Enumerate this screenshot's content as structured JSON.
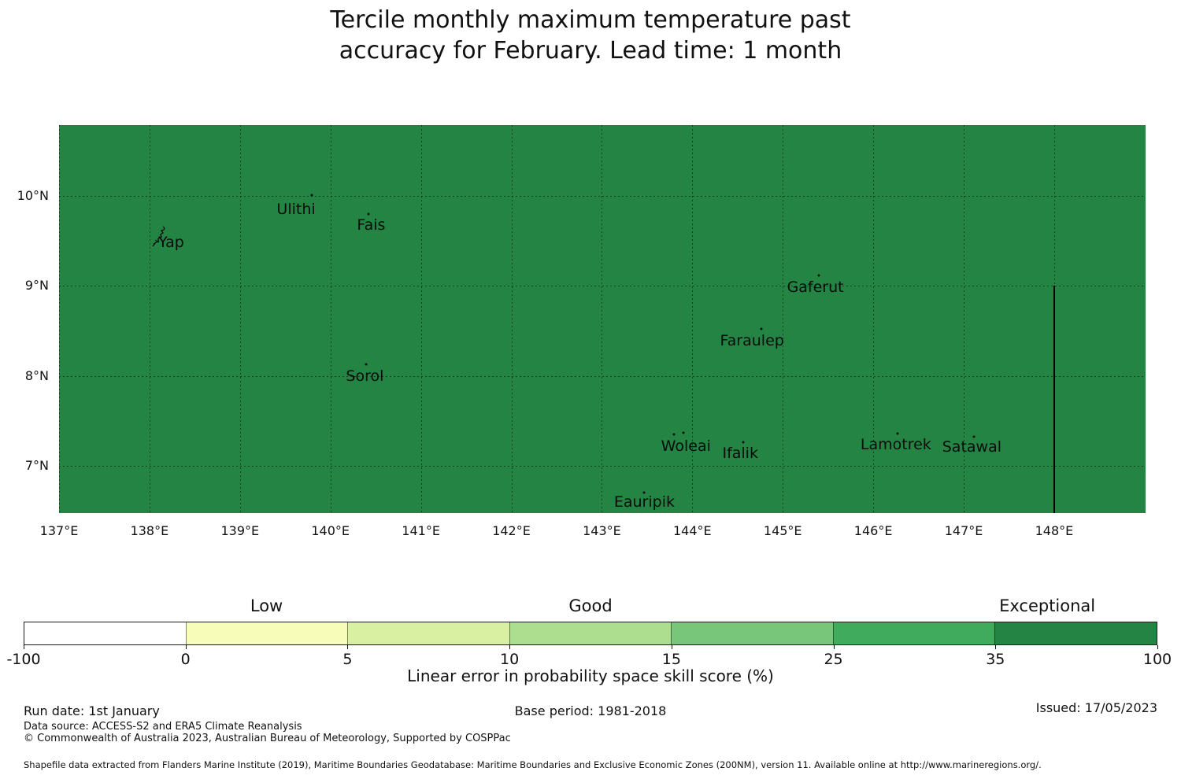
{
  "title": {
    "line1": "Tercile monthly maximum temperature past",
    "line2": "accuracy for February. Lead time: 1 month"
  },
  "chart_data": {
    "type": "heatmap",
    "subtype": "filled-choropleth-map",
    "map_fill_color": "#238443",
    "map_fill_band": "35 to 100 (Exceptional)",
    "x_axis": {
      "tick_labels": [
        "137°E",
        "138°E",
        "139°E",
        "140°E",
        "141°E",
        "142°E",
        "143°E",
        "144°E",
        "145°E",
        "146°E",
        "147°E",
        "148°E"
      ],
      "tick_values": [
        137,
        138,
        139,
        140,
        141,
        142,
        143,
        144,
        145,
        146,
        147,
        148
      ],
      "range": [
        137,
        149.01
      ],
      "grid": true
    },
    "y_axis": {
      "tick_labels": [
        "10°N",
        "9°N",
        "8°N",
        "7°N"
      ],
      "tick_values": [
        10,
        9,
        8,
        7
      ],
      "range": [
        6.48,
        10.785
      ],
      "grid": true
    },
    "islands": [
      {
        "name": "Yap",
        "lon": 138.24,
        "lat": 9.48,
        "shape": "yap-outline",
        "shape_lon": 138.12,
        "shape_lat": 9.55,
        "markers": []
      },
      {
        "name": "Ulithi",
        "lon": 139.62,
        "lat": 9.85,
        "markers": [
          [
            139.79,
            10.01
          ]
        ]
      },
      {
        "name": "Fais",
        "lon": 140.45,
        "lat": 9.68,
        "markers": [
          [
            140.42,
            9.8
          ]
        ]
      },
      {
        "name": "Sorol",
        "lon": 140.38,
        "lat": 8.0,
        "markers": [
          [
            140.39,
            8.13
          ]
        ]
      },
      {
        "name": "Gaferut",
        "lon": 145.36,
        "lat": 8.99,
        "markers": [
          [
            145.4,
            9.12
          ]
        ]
      },
      {
        "name": "Faraulep",
        "lon": 144.66,
        "lat": 8.39,
        "markers": [
          [
            144.76,
            8.52
          ]
        ]
      },
      {
        "name": "Woleai",
        "lon": 143.93,
        "lat": 7.22,
        "markers": [
          [
            143.8,
            7.35
          ],
          [
            143.9,
            7.37
          ]
        ]
      },
      {
        "name": "Ifalik",
        "lon": 144.53,
        "lat": 7.14,
        "markers": [
          [
            144.56,
            7.27
          ]
        ]
      },
      {
        "name": "Lamotrek",
        "lon": 146.25,
        "lat": 7.24,
        "markers": [
          [
            146.27,
            7.36
          ]
        ]
      },
      {
        "name": "Satawal",
        "lon": 147.09,
        "lat": 7.21,
        "markers": [
          [
            147.11,
            7.33
          ]
        ]
      },
      {
        "name": "Eauripik",
        "lon": 143.47,
        "lat": 6.6,
        "markers": [
          [
            143.47,
            6.71
          ]
        ]
      }
    ],
    "boundary_line": {
      "lon": 148,
      "lat_from": 9.0,
      "lat_to": 6.48
    },
    "colorbar": {
      "boundaries": [
        -100,
        0,
        5,
        10,
        15,
        25,
        35,
        100
      ],
      "tick_labels": [
        "-100",
        "0",
        "5",
        "10",
        "15",
        "25",
        "35",
        "100"
      ],
      "segment_colors": [
        "#ffffff",
        "#f7fcb9",
        "#d9f0a3",
        "#addd8e",
        "#78c679",
        "#41ab5d",
        "#238443"
      ],
      "categories": [
        {
          "label": "Low",
          "segment_pos": 1.5
        },
        {
          "label": "Good",
          "segment_pos": 3.5
        },
        {
          "label": "Exceptional",
          "segment_pos": 6.32
        }
      ],
      "axis_label": "Linear error in probability space skill score (%)"
    }
  },
  "footer": {
    "run_date": "Run date: 1st January",
    "base_period": "Base period: 1981-2018",
    "issued": "Issued: 17/05/2023",
    "data_source": "Data source: ACCESS-S2 and ERA5 Climate Reanalysis",
    "copyright": "© Commonwealth of Australia 2023, Australian Bureau of Meteorology, Supported by COSPPac",
    "shapefile_note": "Shapefile data extracted from Flanders Marine Institute (2019), Maritime Boundaries Geodatabase: Maritime Boundaries and Exclusive Economic Zones (200NM), version 11. Available online at http://www.marineregions.org/."
  }
}
